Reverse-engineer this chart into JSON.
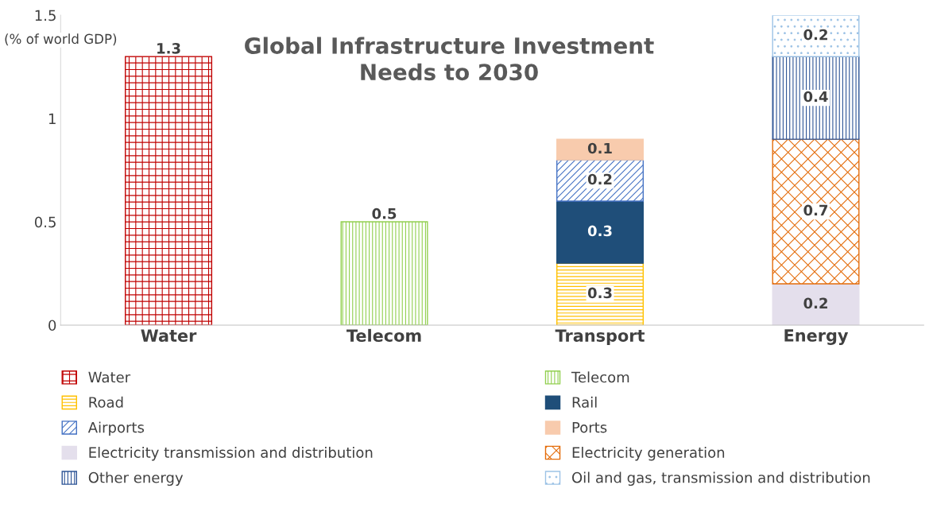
{
  "chart_data": {
    "type": "bar",
    "title": "Global Infrastructure Investment\nNeeds to 2030",
    "ylabel": "(% of world GDP)",
    "categories": [
      "Water",
      "Telecom",
      "Transport",
      "Energy"
    ],
    "stacked": true,
    "data_labels": true,
    "legend": "bottom",
    "grid": false,
    "ylim": [
      0,
      1.5
    ],
    "yticks": [
      0,
      0.5,
      1,
      1.5
    ],
    "series": [
      {
        "name": "Water",
        "color": "#c00000",
        "values": [
          1.3,
          null,
          null,
          null
        ]
      },
      {
        "name": "Telecom",
        "color": "#92d050",
        "values": [
          null,
          0.5,
          null,
          null
        ]
      },
      {
        "name": "Road",
        "color": "#ffc000",
        "values": [
          null,
          null,
          0.3,
          null
        ]
      },
      {
        "name": "Rail",
        "color": "#1f4e79",
        "values": [
          null,
          null,
          0.3,
          null
        ]
      },
      {
        "name": "Airports",
        "color": "#4472c4",
        "values": [
          null,
          null,
          0.2,
          null
        ]
      },
      {
        "name": "Ports",
        "color": "#f8cbad",
        "values": [
          null,
          null,
          0.1,
          null
        ]
      },
      {
        "name": "Electricity transmission and distribution",
        "color": "#e4dfec",
        "values": [
          null,
          null,
          null,
          0.2
        ]
      },
      {
        "name": "Electricity generation",
        "color": "#e46c0a",
        "values": [
          null,
          null,
          null,
          0.7
        ]
      },
      {
        "name": "Other energy",
        "color": "#2e5597",
        "values": [
          null,
          null,
          null,
          0.4
        ]
      },
      {
        "name": "Oil and gas, transmission and distribution",
        "color": "#9dc3e6",
        "values": [
          null,
          null,
          null,
          0.2
        ]
      }
    ]
  }
}
